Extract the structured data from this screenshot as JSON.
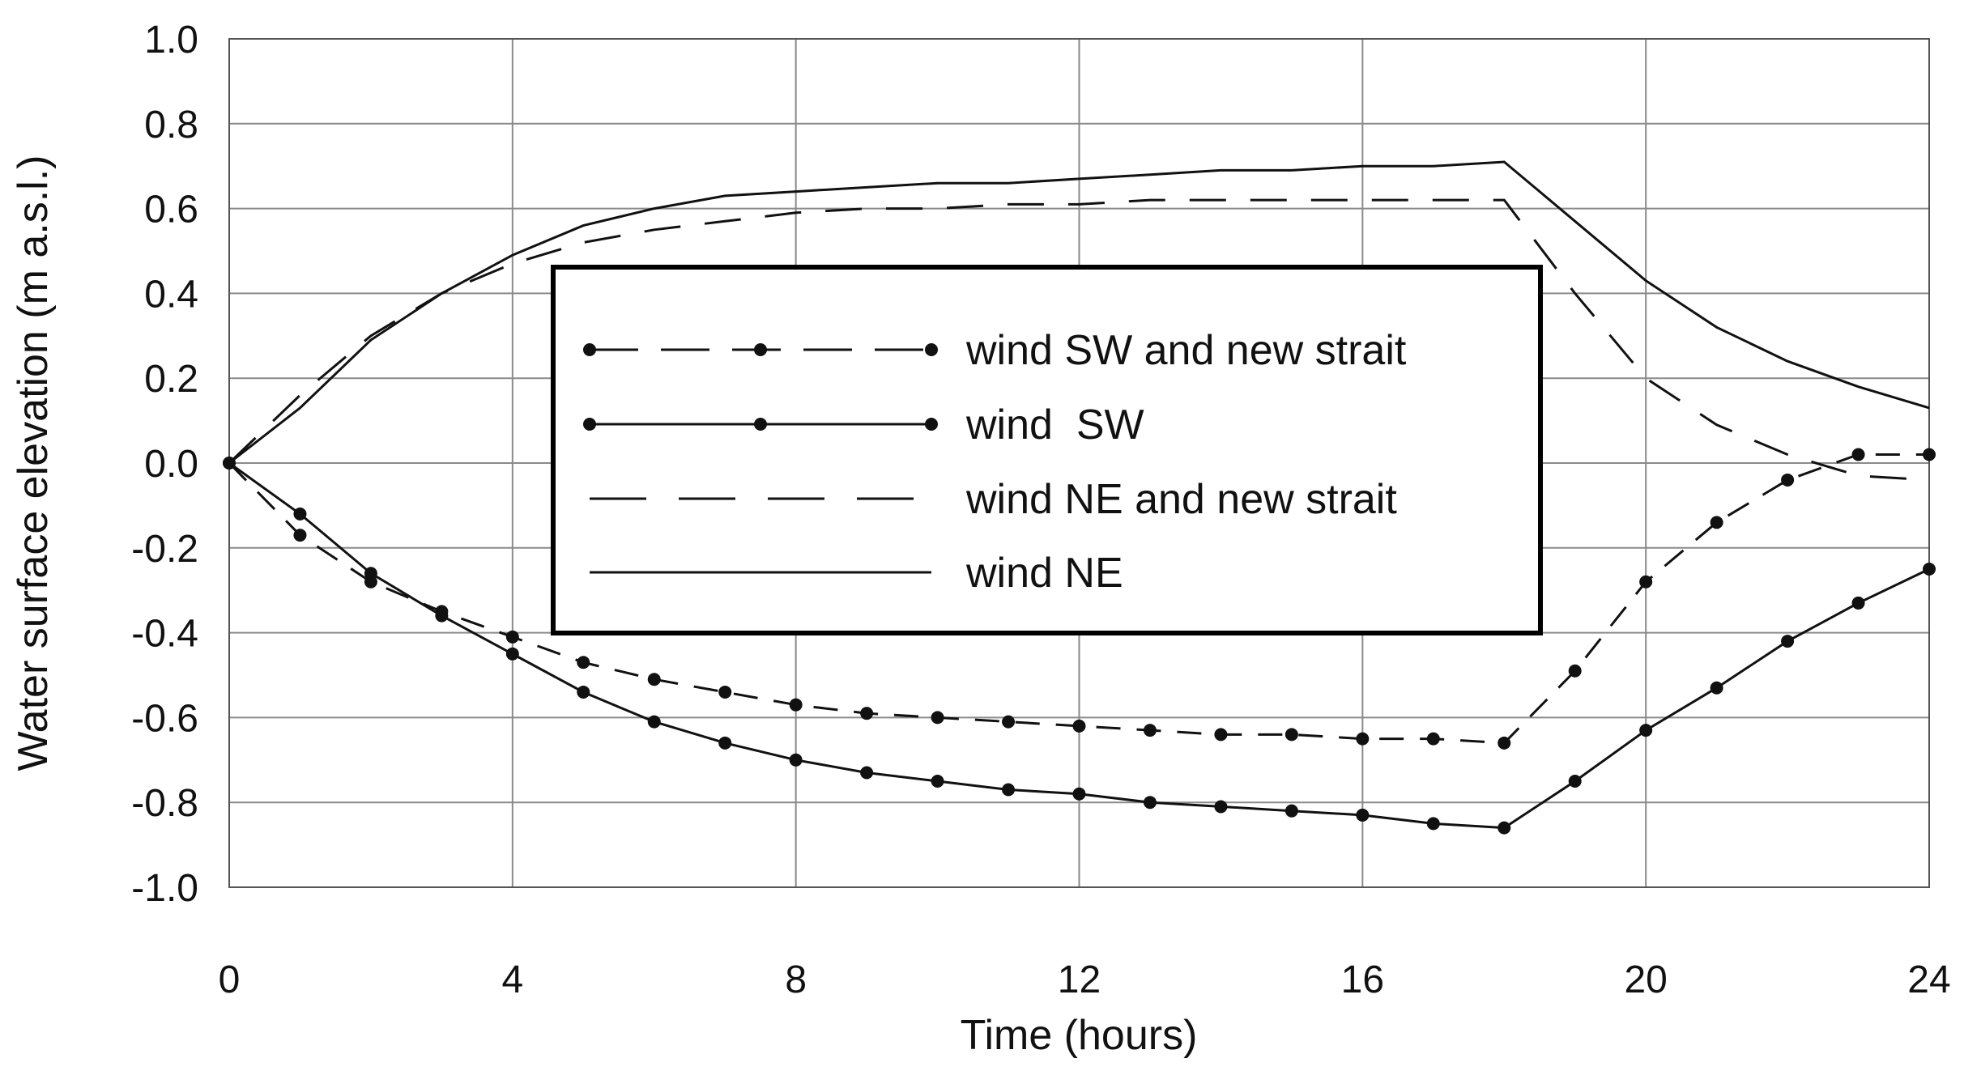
{
  "chart_data": {
    "type": "line",
    "xlabel": "Time (hours)",
    "ylabel": "Water surface elevation (m a.s.l.)",
    "xlim": [
      0,
      24
    ],
    "ylim": [
      -1.0,
      1.0
    ],
    "x_ticks": [
      "0",
      "4",
      "8",
      "12",
      "16",
      "20",
      "24"
    ],
    "y_ticks": [
      "1.0",
      "0.8",
      "0.6",
      "0.4",
      "0.2",
      "0.0",
      "-0.2",
      "-0.4",
      "-0.6",
      "-0.8",
      "-1.0"
    ],
    "x_tick_values": [
      0,
      4,
      8,
      12,
      16,
      20,
      24
    ],
    "y_tick_values": [
      1.0,
      0.8,
      0.6,
      0.4,
      0.2,
      0.0,
      -0.2,
      -0.4,
      -0.6,
      -0.8,
      -1.0
    ],
    "grid": true,
    "legend_position": "center",
    "series": [
      {
        "name": "wind SW and new strait",
        "style": "dashed-markers",
        "x": [
          0,
          1,
          2,
          3,
          4,
          5,
          6,
          7,
          8,
          9,
          10,
          11,
          12,
          13,
          14,
          15,
          16,
          17,
          18,
          19,
          20,
          21,
          22,
          23,
          24
        ],
        "values": [
          0.0,
          -0.17,
          -0.28,
          -0.35,
          -0.41,
          -0.47,
          -0.51,
          -0.54,
          -0.57,
          -0.59,
          -0.6,
          -0.61,
          -0.62,
          -0.63,
          -0.64,
          -0.64,
          -0.65,
          -0.65,
          -0.66,
          -0.49,
          -0.28,
          -0.14,
          -0.04,
          0.02,
          0.02
        ]
      },
      {
        "name": "wind  SW",
        "style": "solid-markers",
        "x": [
          0,
          1,
          2,
          3,
          4,
          5,
          6,
          7,
          8,
          9,
          10,
          11,
          12,
          13,
          14,
          15,
          16,
          17,
          18,
          19,
          20,
          21,
          22,
          23,
          24
        ],
        "values": [
          0.0,
          -0.12,
          -0.26,
          -0.36,
          -0.45,
          -0.54,
          -0.61,
          -0.66,
          -0.7,
          -0.73,
          -0.75,
          -0.77,
          -0.78,
          -0.8,
          -0.81,
          -0.82,
          -0.83,
          -0.85,
          -0.86,
          -0.75,
          -0.63,
          -0.53,
          -0.42,
          -0.33,
          -0.25
        ]
      },
      {
        "name": "wind NE and new strait",
        "style": "dashed",
        "x": [
          0,
          1,
          2,
          3,
          4,
          5,
          6,
          7,
          8,
          9,
          10,
          11,
          12,
          13,
          14,
          15,
          16,
          17,
          18,
          19,
          20,
          21,
          22,
          23,
          24
        ],
        "values": [
          0.0,
          0.16,
          0.3,
          0.4,
          0.47,
          0.52,
          0.55,
          0.57,
          0.59,
          0.6,
          0.6,
          0.61,
          0.61,
          0.62,
          0.62,
          0.62,
          0.62,
          0.62,
          0.62,
          0.4,
          0.2,
          0.09,
          0.02,
          -0.03,
          -0.04
        ]
      },
      {
        "name": "wind NE",
        "style": "solid",
        "x": [
          0,
          1,
          2,
          3,
          4,
          5,
          6,
          7,
          8,
          9,
          10,
          11,
          12,
          13,
          14,
          15,
          16,
          17,
          18,
          19,
          20,
          21,
          22,
          23,
          24
        ],
        "values": [
          0.0,
          0.13,
          0.29,
          0.4,
          0.49,
          0.56,
          0.6,
          0.63,
          0.64,
          0.65,
          0.66,
          0.66,
          0.67,
          0.68,
          0.69,
          0.69,
          0.7,
          0.7,
          0.71,
          0.57,
          0.43,
          0.32,
          0.24,
          0.18,
          0.13
        ]
      }
    ]
  }
}
